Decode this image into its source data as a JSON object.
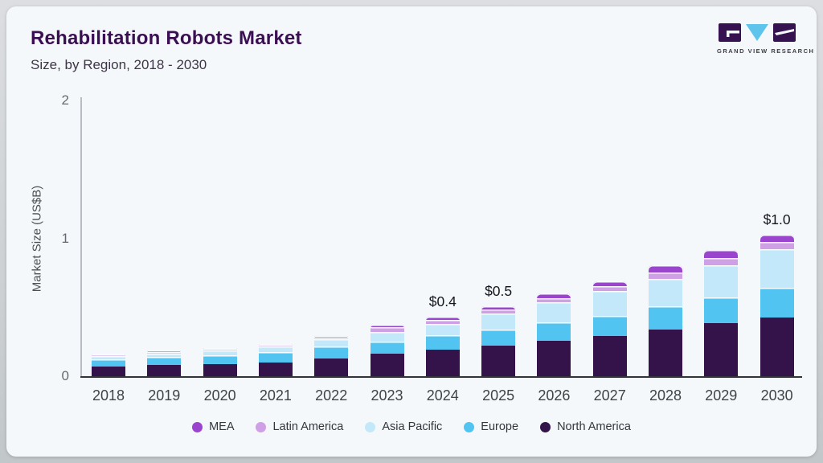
{
  "header": {
    "title": "Rehabilitation Robots Market",
    "subtitle": "Size, by Region, 2018 - 2030"
  },
  "logo": {
    "name": "grand-view-research-logo",
    "text": "GRAND VIEW RESEARCH",
    "block_color": "#371250",
    "triangle_color": "#5ec4ec"
  },
  "chart_data": {
    "type": "bar",
    "stacked": true,
    "title": "Rehabilitation Robots Market",
    "subtitle": "Size, by Region, 2018 - 2030",
    "xlabel": "",
    "ylabel": "Market Size (US$B)",
    "ylim": [
      0,
      2
    ],
    "yticks": [
      "0",
      "1",
      "2"
    ],
    "grid": false,
    "legend_position": "bottom",
    "categories": [
      "2018",
      "2019",
      "2020",
      "2021",
      "2022",
      "2023",
      "2024",
      "2025",
      "2026",
      "2027",
      "2028",
      "2029",
      "2030"
    ],
    "series": [
      {
        "name": "North America",
        "color": "#331349",
        "values": [
          0.07,
          0.08,
          0.089,
          0.1,
          0.128,
          0.165,
          0.195,
          0.22,
          0.258,
          0.29,
          0.34,
          0.385,
          0.428
        ]
      },
      {
        "name": "Europe",
        "color": "#52c4f1",
        "values": [
          0.052,
          0.058,
          0.065,
          0.074,
          0.09,
          0.084,
          0.105,
          0.118,
          0.131,
          0.146,
          0.165,
          0.189,
          0.212
        ]
      },
      {
        "name": "Asia Pacific",
        "color": "#c3e8f9",
        "values": [
          0.025,
          0.028,
          0.032,
          0.04,
          0.052,
          0.074,
          0.078,
          0.115,
          0.146,
          0.184,
          0.201,
          0.233,
          0.28
        ]
      },
      {
        "name": "Latin America",
        "color": "#cfa0e6",
        "values": [
          0.009,
          0.01,
          0.01,
          0.011,
          0.012,
          0.03,
          0.03,
          0.03,
          0.033,
          0.035,
          0.046,
          0.052,
          0.055
        ]
      },
      {
        "name": "MEA",
        "color": "#9b45cf",
        "values": [
          0.008,
          0.009,
          0.01,
          0.011,
          0.012,
          0.02,
          0.025,
          0.025,
          0.031,
          0.033,
          0.051,
          0.058,
          0.052
        ]
      }
    ],
    "legend_order": [
      "MEA",
      "Latin America",
      "Asia Pacific",
      "Europe",
      "North America"
    ],
    "annotations": [
      {
        "category": "2024",
        "text": "$0.4"
      },
      {
        "category": "2025",
        "text": "$0.5"
      },
      {
        "category": "2030",
        "text": "$1.0"
      }
    ]
  }
}
